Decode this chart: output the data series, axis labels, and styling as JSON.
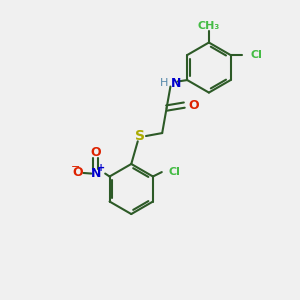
{
  "bg_color": "#f0f0f0",
  "bond_color": "#2d5a27",
  "atom_colors": {
    "N_amide": "#0000cc",
    "H_amide": "#5588aa",
    "O_carbonyl": "#dd2200",
    "O_nitro": "#dd2200",
    "N_nitro": "#0000cc",
    "S": "#aaaa00",
    "Cl": "#44bb44",
    "CH3": "#44bb44"
  },
  "line_color": "#2d5a27",
  "line_width": 1.5,
  "fig_width": 3.0,
  "fig_height": 3.0,
  "dpi": 100,
  "xlim": [
    0,
    10
  ],
  "ylim": [
    0,
    10
  ]
}
